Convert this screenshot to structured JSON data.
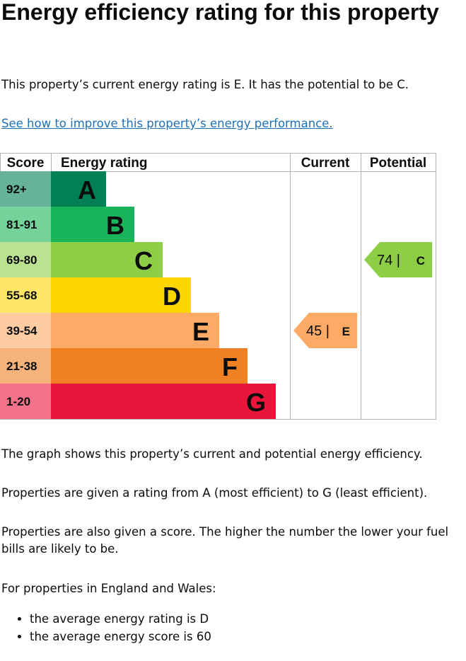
{
  "title": "Energy efficiency rating for this property",
  "intro": "This property’s current energy rating is E. It has the potential to be C.",
  "improve_link": "See how to improve this property’s energy performance.",
  "chart_data": {
    "type": "table",
    "headers": {
      "score": "Score",
      "rating": "Energy rating",
      "current": "Current",
      "potential": "Potential"
    },
    "bands": [
      {
        "score": "92+",
        "letter": "A",
        "color": "#008054",
        "score_bg": "#66b398"
      },
      {
        "score": "81-91",
        "letter": "B",
        "color": "#19b459",
        "score_bg": "#75d29b"
      },
      {
        "score": "69-80",
        "letter": "C",
        "color": "#8dce46",
        "score_bg": "#bbe290"
      },
      {
        "score": "55-68",
        "letter": "D",
        "color": "#ffd500",
        "score_bg": "#ffe666"
      },
      {
        "score": "39-54",
        "letter": "E",
        "color": "#fcaa65",
        "score_bg": "#fdcca3"
      },
      {
        "score": "21-38",
        "letter": "F",
        "color": "#ef8023",
        "score_bg": "#f5b37b"
      },
      {
        "score": "1-20",
        "letter": "G",
        "color": "#e9153b",
        "score_bg": "#f27389"
      }
    ],
    "current": {
      "score": 45,
      "letter": "E",
      "band_index": 4,
      "color": "#fcaa65"
    },
    "potential": {
      "score": 74,
      "letter": "C",
      "band_index": 2,
      "color": "#8dce46"
    }
  },
  "explanation": [
    "The graph shows this property’s current and potential energy efficiency.",
    "Properties are given a rating from A (most efficient) to G (least efficient).",
    "Properties are also given a score. The higher the number the lower your fuel bills are likely to be.",
    "For properties in England and Wales:"
  ],
  "averages": [
    "the average energy rating is D",
    "the average energy score is 60"
  ]
}
